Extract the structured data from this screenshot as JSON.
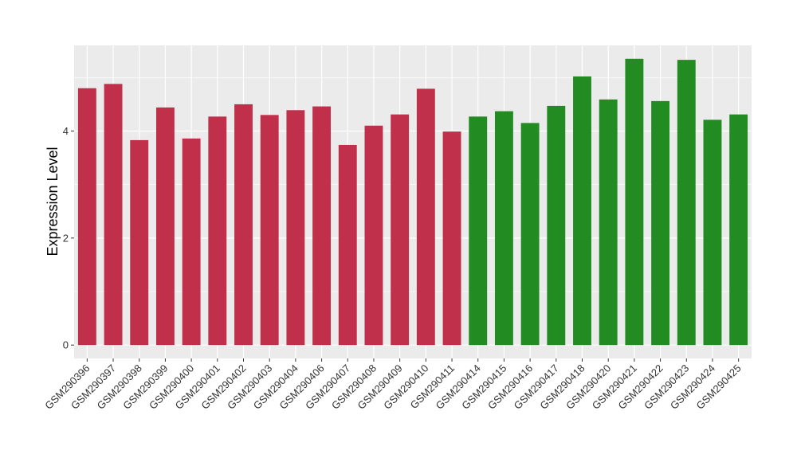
{
  "chart_data": {
    "type": "bar",
    "title": "",
    "xlabel": "",
    "ylabel": "Expression Level",
    "ylim": [
      -0.25,
      5.6
    ],
    "yticks": [
      0,
      2,
      4
    ],
    "grid": true,
    "legend": "none",
    "colors": {
      "group1": "#C0304A",
      "group2": "#228B22",
      "panel": "#EBEBEB",
      "grid": "#FFFFFF"
    },
    "categories": [
      "GSM290396",
      "GSM290397",
      "GSM290398",
      "GSM290399",
      "GSM290400",
      "GSM290401",
      "GSM290402",
      "GSM290403",
      "GSM290404",
      "GSM290406",
      "GSM290407",
      "GSM290408",
      "GSM290409",
      "GSM290410",
      "GSM290411",
      "GSM290414",
      "GSM290415",
      "GSM290416",
      "GSM290417",
      "GSM290418",
      "GSM290420",
      "GSM290421",
      "GSM290422",
      "GSM290423",
      "GSM290424",
      "GSM290425"
    ],
    "values": [
      4.8,
      4.88,
      3.83,
      4.44,
      3.86,
      4.27,
      4.5,
      4.3,
      4.39,
      4.46,
      3.74,
      4.1,
      4.31,
      4.79,
      3.99,
      4.27,
      4.37,
      4.15,
      4.47,
      5.02,
      4.59,
      5.35,
      4.56,
      5.33,
      4.21,
      4.31
    ],
    "groups": [
      "group1",
      "group1",
      "group1",
      "group1",
      "group1",
      "group1",
      "group1",
      "group1",
      "group1",
      "group1",
      "group1",
      "group1",
      "group1",
      "group1",
      "group1",
      "group2",
      "group2",
      "group2",
      "group2",
      "group2",
      "group2",
      "group2",
      "group2",
      "group2",
      "group2",
      "group2"
    ]
  }
}
